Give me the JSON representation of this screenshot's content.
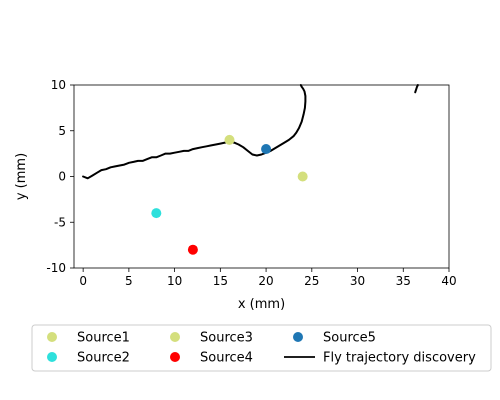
{
  "chart_data": {
    "type": "scatter",
    "xlabel": "x (mm)",
    "ylabel": "y (mm)",
    "xlim": [
      -1,
      40
    ],
    "ylim": [
      -10,
      10
    ],
    "xticks": [
      0,
      5,
      10,
      15,
      20,
      25,
      30,
      35,
      40
    ],
    "yticks": [
      -10,
      -5,
      0,
      5,
      10
    ],
    "grid": false,
    "legend_position": "below",
    "series": [
      {
        "name": "Source1",
        "kind": "point",
        "color": "#d4df7d",
        "x": 24,
        "y": 0
      },
      {
        "name": "Source2",
        "kind": "point",
        "color": "#2ee0dc",
        "x": 8,
        "y": -4
      },
      {
        "name": "Source3",
        "kind": "point",
        "color": "#d4df7d",
        "x": 16,
        "y": 4
      },
      {
        "name": "Source4",
        "kind": "point",
        "color": "#ff0000",
        "x": 12,
        "y": -8
      },
      {
        "name": "Source5",
        "kind": "point",
        "color": "#1f77b4",
        "x": 20,
        "y": 3
      },
      {
        "name": "Fly trajectory discovery",
        "kind": "line",
        "color": "#000000",
        "segments": [
          {
            "x": [
              0,
              0.5,
              1,
              1.5,
              2,
              2.5,
              3,
              3.5,
              4,
              4.5,
              5,
              5.5,
              6,
              6.5,
              7,
              7.5,
              8,
              8.5,
              9,
              9.5,
              10,
              10.5,
              11,
              11.5,
              12,
              12.5,
              13,
              13.5,
              14,
              14.5,
              15,
              15.5,
              16,
              16.5,
              17,
              17.5,
              18,
              18.5,
              19,
              19.5,
              20,
              20.5,
              21,
              21.5,
              22,
              22.5,
              23,
              23.3,
              23.6,
              23.9,
              24.1,
              24.25,
              24.3,
              24.3,
              24.2,
              24.05,
              23.9,
              23.8
            ],
            "y": [
              0,
              -0.2,
              0.1,
              0.4,
              0.7,
              0.8,
              1.0,
              1.1,
              1.2,
              1.3,
              1.5,
              1.6,
              1.7,
              1.7,
              1.9,
              2.1,
              2.1,
              2.3,
              2.5,
              2.5,
              2.6,
              2.7,
              2.8,
              2.8,
              3.0,
              3.1,
              3.2,
              3.3,
              3.4,
              3.5,
              3.6,
              3.7,
              3.75,
              3.7,
              3.5,
              3.2,
              2.8,
              2.4,
              2.3,
              2.4,
              2.6,
              2.8,
              3.1,
              3.4,
              3.7,
              4.0,
              4.4,
              4.8,
              5.3,
              6.0,
              6.8,
              7.5,
              8.2,
              8.8,
              9.3,
              9.6,
              9.8,
              10.0
            ]
          },
          {
            "x": [
              36.3,
              36.4,
              36.5,
              36.6
            ],
            "y": [
              9.2,
              9.5,
              9.8,
              10.0
            ]
          }
        ]
      }
    ]
  }
}
